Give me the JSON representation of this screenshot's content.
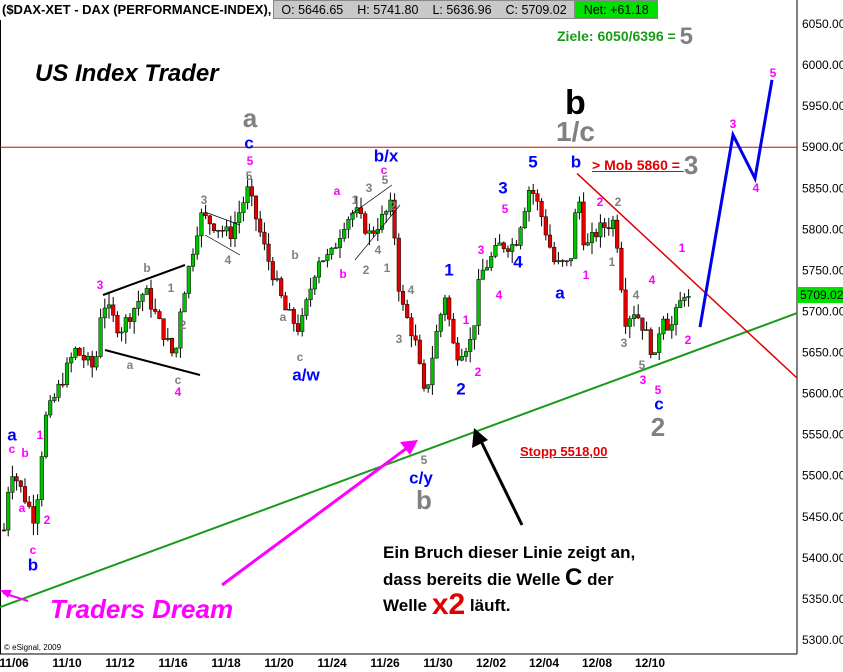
{
  "header": {
    "symbol": "($DAX-XET - DAX (PERFORMANCE-INDEX),",
    "open": "O: 5646.65",
    "high": "H: 5741.80",
    "low": "L: 5636.96",
    "close": "C: 5709.02",
    "net": "Net: +61.18",
    "net_color": "#00e000"
  },
  "texts": {
    "brand": "US Index Trader",
    "targets": "Ziele: 6050/6396 = ",
    "targets_num": "5",
    "mob": "> Mob 5860 = ",
    "mob_num": "3",
    "stop": "Stopp 5518,00",
    "dream": "Traders Dream",
    "note1": "Ein Bruch dieser Linie zeigt an,",
    "note2a": "dass bereits die Welle ",
    "note2b": "C",
    "note2c": " der",
    "note3a": "Welle ",
    "note3b": "x2",
    "note3c": " läuft.",
    "copyright": "© eSignal, 2009",
    "big_b": "b",
    "big_1c": "1/c"
  },
  "chart_data": {
    "type": "candlestick",
    "symbol": "$DAX-XET",
    "x_tick_labels": [
      "11/06",
      "11/10",
      "11/12",
      "11/16",
      "11/18",
      "11/20",
      "11/24",
      "11/26",
      "11/30",
      "12/02",
      "12/04",
      "12/08",
      "12/10"
    ],
    "y_tick_labels": [
      "5300.00",
      "5350.00",
      "5400.00",
      "5450.00",
      "5500.00",
      "5550.00",
      "5600.00",
      "5650.00",
      "5700.00",
      "5750.00",
      "5800.00",
      "5850.00",
      "5900.00",
      "5950.00",
      "6000.00",
      "6050.00"
    ],
    "ylim": [
      5290,
      6075
    ],
    "last_price": "5709.02",
    "last_price_color": "#00e000",
    "price_path": [
      5434,
      5513,
      5446,
      5568,
      5653,
      5629,
      5714,
      5677,
      5726,
      5641,
      5702,
      5817,
      5793,
      5848,
      5775,
      5702,
      5677,
      5765,
      5765,
      5811,
      5823,
      5793,
      5830,
      5714,
      5665,
      5592,
      5665,
      5720,
      5647,
      5665,
      5744,
      5781,
      5781,
      5854,
      5823,
      5757,
      5757,
      5848,
      5775,
      5799,
      5811,
      5690,
      5702,
      5677,
      5641,
      5702,
      5677,
      5726,
      5709
    ],
    "lines": {
      "resistance_horizontal": 5900,
      "uptrend_green": [
        5340,
        5698
      ],
      "downtrend_red": [
        5868,
        5619
      ],
      "projection_blue": [
        5681,
        5915,
        5862,
        5982
      ]
    },
    "colors": {
      "up": "#00c000",
      "down": "#e00000",
      "green_line": "#1a9a1a",
      "red_line": "#e00000",
      "projection": "#0000ee",
      "wave_magenta": "#ff00ff",
      "wave_blue": "#0000ff",
      "wave_gray": "#808080"
    },
    "wave_labels": [
      {
        "t": "a",
        "c": "gray",
        "s": "xl"
      },
      {
        "t": "c",
        "c": "blue",
        "s": "m"
      },
      {
        "t": "5",
        "c": "magenta",
        "s": "s"
      },
      {
        "t": "5",
        "c": "gray",
        "s": "s"
      },
      {
        "t": "3",
        "c": "gray",
        "s": "s"
      },
      {
        "t": "4",
        "c": "gray",
        "s": "s"
      },
      {
        "t": "1",
        "c": "gray",
        "s": "s"
      },
      {
        "t": "b",
        "c": "gray",
        "s": "s"
      },
      {
        "t": "3",
        "c": "magenta",
        "s": "s"
      },
      {
        "t": "a",
        "c": "gray",
        "s": "s"
      },
      {
        "t": "2",
        "c": "gray",
        "s": "s"
      },
      {
        "t": "c",
        "c": "gray",
        "s": "s"
      },
      {
        "t": "4",
        "c": "magenta",
        "s": "s"
      },
      {
        "t": "b",
        "c": "gray",
        "s": "s"
      },
      {
        "t": "a",
        "c": "gray",
        "s": "s"
      },
      {
        "t": "c",
        "c": "gray",
        "s": "s"
      },
      {
        "t": "a/w",
        "c": "blue",
        "s": "m"
      },
      {
        "t": "a",
        "c": "magenta",
        "s": "s"
      },
      {
        "t": "b",
        "c": "magenta",
        "s": "s"
      },
      {
        "t": "1",
        "c": "gray",
        "s": "s"
      },
      {
        "t": "3",
        "c": "gray",
        "s": "s"
      },
      {
        "t": "5",
        "c": "gray",
        "s": "s"
      },
      {
        "t": "c",
        "c": "magenta",
        "s": "s"
      },
      {
        "t": "b/x",
        "c": "blue",
        "s": "m"
      },
      {
        "t": "2",
        "c": "gray",
        "s": "s"
      },
      {
        "t": "4",
        "c": "gray",
        "s": "s"
      },
      {
        "t": "2",
        "c": "gray",
        "s": "s"
      },
      {
        "t": "1",
        "c": "gray",
        "s": "s"
      },
      {
        "t": "4",
        "c": "gray",
        "s": "s"
      },
      {
        "t": "3",
        "c": "gray",
        "s": "s"
      },
      {
        "t": "5",
        "c": "gray",
        "s": "s"
      },
      {
        "t": "c/y",
        "c": "blue",
        "s": "m"
      },
      {
        "t": "b",
        "c": "gray",
        "s": "xl"
      },
      {
        "t": "1",
        "c": "blue",
        "s": "m"
      },
      {
        "t": "2",
        "c": "blue",
        "s": "m"
      },
      {
        "t": "1",
        "c": "magenta",
        "s": "s"
      },
      {
        "t": "2",
        "c": "magenta",
        "s": "s"
      },
      {
        "t": "3",
        "c": "magenta",
        "s": "s"
      },
      {
        "t": "4",
        "c": "magenta",
        "s": "s"
      },
      {
        "t": "5",
        "c": "magenta",
        "s": "s"
      },
      {
        "t": "3",
        "c": "blue",
        "s": "m"
      },
      {
        "t": "4",
        "c": "blue",
        "s": "m"
      },
      {
        "t": "5",
        "c": "blue",
        "s": "m"
      },
      {
        "t": "a",
        "c": "blue",
        "s": "m"
      },
      {
        "t": "b",
        "c": "blue",
        "s": "m"
      },
      {
        "t": "1",
        "c": "magenta",
        "s": "s"
      },
      {
        "t": "2",
        "c": "magenta",
        "s": "s"
      },
      {
        "t": "2",
        "c": "gray",
        "s": "s"
      },
      {
        "t": "1",
        "c": "gray",
        "s": "s"
      },
      {
        "t": "4",
        "c": "magenta",
        "s": "s"
      },
      {
        "t": "4",
        "c": "gray",
        "s": "s"
      },
      {
        "t": "3",
        "c": "gray",
        "s": "s"
      },
      {
        "t": "5",
        "c": "gray",
        "s": "s"
      },
      {
        "t": "3",
        "c": "magenta",
        "s": "s"
      },
      {
        "t": "5",
        "c": "magenta",
        "s": "s"
      },
      {
        "t": "c",
        "c": "blue",
        "s": "m"
      },
      {
        "t": "2",
        "c": "gray",
        "s": "xl"
      },
      {
        "t": "1",
        "c": "magenta",
        "s": "s"
      },
      {
        "t": "2",
        "c": "magenta",
        "s": "s"
      },
      {
        "t": "3",
        "c": "magenta",
        "s": "s"
      },
      {
        "t": "4",
        "c": "magenta",
        "s": "s"
      },
      {
        "t": "5",
        "c": "magenta",
        "s": "s"
      },
      {
        "t": "a",
        "c": "blue",
        "s": "m"
      },
      {
        "t": "c",
        "c": "magenta",
        "s": "s"
      },
      {
        "t": "b",
        "c": "magenta",
        "s": "s"
      },
      {
        "t": "1",
        "c": "magenta",
        "s": "s"
      },
      {
        "t": "a",
        "c": "magenta",
        "s": "s"
      },
      {
        "t": "2",
        "c": "magenta",
        "s": "s"
      },
      {
        "t": "c",
        "c": "magenta",
        "s": "s"
      },
      {
        "t": "b",
        "c": "blue",
        "s": "m"
      }
    ]
  }
}
